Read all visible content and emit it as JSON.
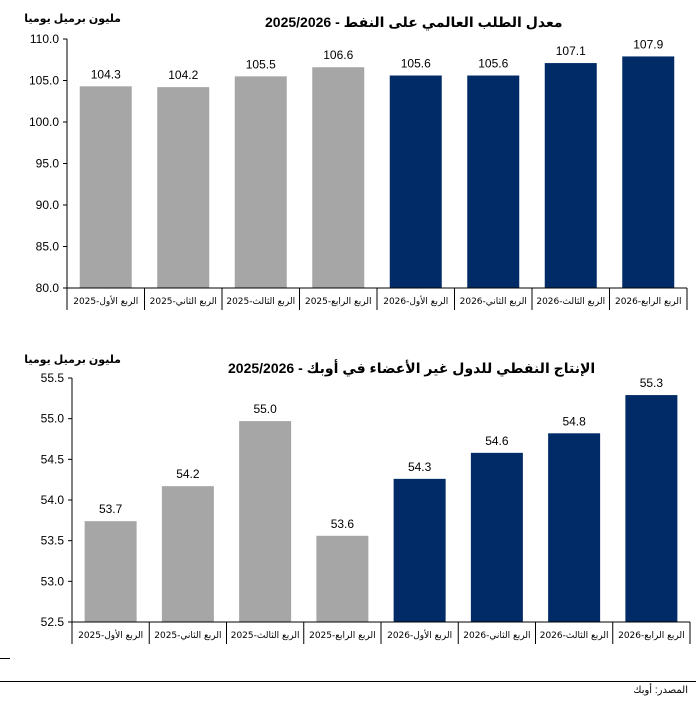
{
  "colors": {
    "gray": "#a6a6a6",
    "navy": "#002b66"
  },
  "source": "المصدر: أوبك",
  "chart_data": [
    {
      "type": "bar",
      "title": "معدل الطلب العالمي على النفط - 2025/2026",
      "ylabel": "مليون برميل يوميا",
      "ylim": [
        80.0,
        110.0
      ],
      "yticks": [
        "110.0",
        "105.0",
        "100.0",
        "95.0",
        "90.0",
        "85.0",
        "80.0"
      ],
      "categories": [
        "الربع الأول-2025",
        "الربع الثاني-2025",
        "الربع الثالث-2025",
        "الربع الرابع-2025",
        "الربع الأول-2026",
        "الربع الثاني-2026",
        "الربع الثالث-2026",
        "الربع الرابع-2026"
      ],
      "values": [
        104.3,
        104.2,
        105.5,
        106.6,
        105.6,
        105.6,
        107.1,
        107.9
      ],
      "value_labels": [
        "104.3",
        "104.2",
        "105.5",
        "106.6",
        "105.6",
        "105.6",
        "107.1",
        "107.9"
      ],
      "series_colors": [
        "gray",
        "gray",
        "gray",
        "gray",
        "navy",
        "navy",
        "navy",
        "navy"
      ]
    },
    {
      "type": "bar",
      "title": "الإنتاج النفطي للدول غير الأعضاء في أوبك -   2025/2026",
      "ylabel": "مليون برميل يوميا",
      "ylim": [
        52.5,
        55.5
      ],
      "yticks": [
        "55.5",
        "55.0",
        "54.5",
        "54.0",
        "53.5",
        "53.0",
        "52.5"
      ],
      "categories": [
        "الربع الأول-2025",
        "الربع الثاني-2025",
        "الربع الثالث-2025",
        "الربع الرابع-2025",
        "الربع الأول-2026",
        "الربع الثاني-2026",
        "الربع الثالث-2026",
        "الربع الرابع-2026"
      ],
      "values": [
        53.74,
        54.17,
        54.97,
        53.56,
        54.26,
        54.58,
        54.82,
        55.29
      ],
      "value_labels": [
        "53.7",
        "54.2",
        "55.0",
        "53.6",
        "54.3",
        "54.6",
        "54.8",
        "55.3"
      ],
      "series_colors": [
        "gray",
        "gray",
        "gray",
        "gray",
        "navy",
        "navy",
        "navy",
        "navy"
      ]
    }
  ]
}
